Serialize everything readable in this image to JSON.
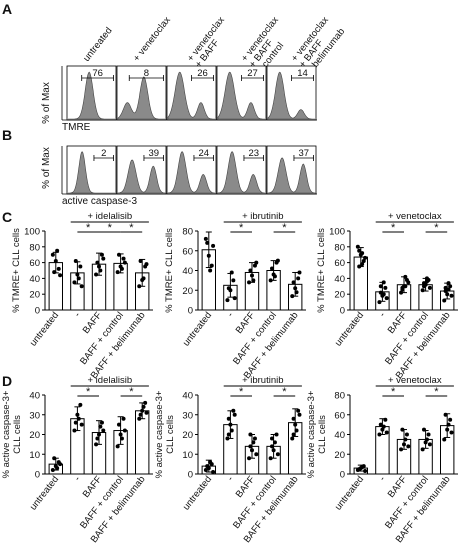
{
  "panels": {
    "A": {
      "letter": "A",
      "column_labels": [
        "untreated",
        "+ venetoclax",
        "+ venetoclax\n+ BAFF",
        "+ venetoclax\n+ BAFF\n+ control",
        "+ venetoclax\n+ BAFF\n+ belimumab"
      ],
      "ylabel": "% of Max",
      "xlabel": "TMRE",
      "gate_values": [
        "76",
        "8",
        "26",
        "27",
        "14"
      ]
    },
    "B": {
      "letter": "B",
      "ylabel": "% of Max",
      "xlabel": "active caspase-3",
      "gate_values": [
        "2",
        "39",
        "24",
        "23",
        "37"
      ]
    },
    "C": {
      "letter": "C"
    },
    "D": {
      "letter": "D"
    }
  },
  "colors": {
    "histogram_fill": "#8a8a8a",
    "bar_fill": "#ffffff",
    "stroke": "#000000"
  },
  "chart_data": [
    {
      "id": "C1",
      "type": "bar",
      "ylabel": "% TMRE+ CLL cells",
      "ylim": [
        0,
        100
      ],
      "yticks": [
        0,
        20,
        40,
        60,
        80,
        100
      ],
      "treatment": "+ idelalisib",
      "categories": [
        "untreated",
        "-",
        "BAFF",
        "BAFF + control",
        "BAFF + belimumab"
      ],
      "values": [
        60,
        47,
        58,
        59,
        47
      ],
      "errors": [
        13,
        14,
        14,
        12,
        17
      ],
      "points": [
        [
          70,
          62,
          52,
          48,
          75,
          44
        ],
        [
          35,
          45,
          55,
          62,
          40,
          30
        ],
        [
          45,
          55,
          70,
          60,
          50,
          65
        ],
        [
          48,
          55,
          65,
          70,
          52,
          60
        ],
        [
          30,
          38,
          55,
          62,
          40,
          58
        ]
      ],
      "significance": [
        [
          1,
          2
        ],
        [
          2,
          3
        ],
        [
          3,
          4
        ]
      ],
      "sig_label": "*"
    },
    {
      "id": "C2",
      "type": "bar",
      "ylabel": "% TMRE+ CLL cells",
      "ylim": [
        0,
        80
      ],
      "yticks": [
        0,
        20,
        40,
        60,
        80
      ],
      "treatment": "+ ibrutinib",
      "categories": [
        "untreated",
        "-",
        "BAFF",
        "BAFF + control",
        "BAFF + belimumab"
      ],
      "values": [
        61,
        25,
        38,
        40,
        26
      ],
      "errors": [
        18,
        12,
        10,
        10,
        12
      ],
      "points": [
        [
          72,
          55,
          45,
          68,
          40,
          65
        ],
        [
          10,
          20,
          30,
          22,
          38,
          12
        ],
        [
          28,
          35,
          45,
          40,
          30,
          48
        ],
        [
          30,
          36,
          48,
          42,
          34,
          50
        ],
        [
          14,
          22,
          32,
          28,
          18,
          38
        ]
      ],
      "significance": [
        [
          1,
          2
        ],
        [
          3,
          4
        ]
      ],
      "sig_label": "*"
    },
    {
      "id": "C3",
      "type": "bar",
      "ylabel": "% TMRE+ CLL cells",
      "ylim": [
        0,
        100
      ],
      "yticks": [
        0,
        20,
        40,
        60,
        80,
        100
      ],
      "treatment": "+ venetoclax",
      "categories": [
        "untreated",
        "-",
        "BAFF",
        "BAFF + control",
        "BAFF + belimumab"
      ],
      "values": [
        67,
        23,
        32,
        32,
        24
      ],
      "errors": [
        12,
        12,
        10,
        8,
        10
      ],
      "points": [
        [
          80,
          70,
          62,
          55,
          72,
          66,
          75,
          58
        ],
        [
          10,
          18,
          28,
          22,
          35,
          15,
          30,
          20
        ],
        [
          22,
          30,
          38,
          28,
          42,
          35,
          26,
          30
        ],
        [
          25,
          32,
          38,
          30,
          40,
          28,
          34,
          36
        ],
        [
          12,
          20,
          30,
          24,
          34,
          18,
          28,
          26
        ]
      ],
      "significance": [
        [
          1,
          2
        ],
        [
          3,
          4
        ]
      ],
      "sig_label": "*"
    },
    {
      "id": "D1",
      "type": "bar",
      "ylabel": "% active caspase-3+\nCLL cells",
      "ylim": [
        0,
        40
      ],
      "yticks": [
        0,
        10,
        20,
        30,
        40
      ],
      "treatment": "+ idelalisib",
      "categories": [
        "untreated",
        "-",
        "BAFF",
        "BAFF + control",
        "BAFF + belimumab"
      ],
      "values": [
        5,
        28,
        21,
        22,
        32
      ],
      "errors": [
        3,
        6,
        6,
        7,
        4
      ],
      "points": [
        [
          2,
          4,
          6,
          8,
          3,
          5
        ],
        [
          22,
          30,
          35,
          26,
          28,
          25
        ],
        [
          15,
          20,
          26,
          18,
          24,
          22
        ],
        [
          14,
          20,
          28,
          25,
          18,
          22
        ],
        [
          28,
          32,
          36,
          30,
          34,
          31
        ]
      ],
      "significance": [
        [
          1,
          2
        ],
        [
          3,
          4
        ]
      ],
      "sig_label": "*"
    },
    {
      "id": "D2",
      "type": "bar",
      "ylabel": "% active caspase-3+\nCLL cells",
      "ylim": [
        0,
        40
      ],
      "yticks": [
        0,
        10,
        20,
        30,
        40
      ],
      "treatment": "+ ibrutinib",
      "categories": [
        "untreated",
        "-",
        "BAFF",
        "BAFF + control",
        "BAFF + belimumab"
      ],
      "values": [
        4,
        25,
        14,
        14,
        26
      ],
      "errors": [
        3,
        7,
        6,
        6,
        7
      ],
      "points": [
        [
          2,
          3,
          5,
          4,
          6,
          1
        ],
        [
          18,
          25,
          32,
          28,
          22,
          30,
          20
        ],
        [
          8,
          12,
          18,
          14,
          16,
          10,
          20
        ],
        [
          8,
          12,
          20,
          14,
          16,
          10,
          18
        ],
        [
          18,
          25,
          32,
          28,
          22,
          30,
          20
        ]
      ],
      "significance": [
        [
          1,
          2
        ],
        [
          3,
          4
        ]
      ],
      "sig_label": "*"
    },
    {
      "id": "D3",
      "type": "bar",
      "ylabel": "% active caspase-3+\nCLL cells",
      "ylim": [
        0,
        80
      ],
      "yticks": [
        0,
        20,
        40,
        60,
        80
      ],
      "treatment": "+ venetoclax",
      "categories": [
        "untreated",
        "-",
        "BAFF",
        "BAFF + control",
        "BAFF + belimumab"
      ],
      "values": [
        6,
        48,
        35,
        35,
        49
      ],
      "errors": [
        3,
        8,
        10,
        9,
        12
      ],
      "points": [
        [
          4,
          6,
          8,
          5,
          7,
          3
        ],
        [
          40,
          45,
          55,
          50,
          48,
          42
        ],
        [
          25,
          30,
          40,
          45,
          35,
          28
        ],
        [
          25,
          32,
          40,
          45,
          35,
          30
        ],
        [
          35,
          45,
          55,
          60,
          50,
          42
        ]
      ],
      "significance": [
        [
          1,
          2
        ],
        [
          3,
          4
        ]
      ],
      "sig_label": "*"
    }
  ]
}
